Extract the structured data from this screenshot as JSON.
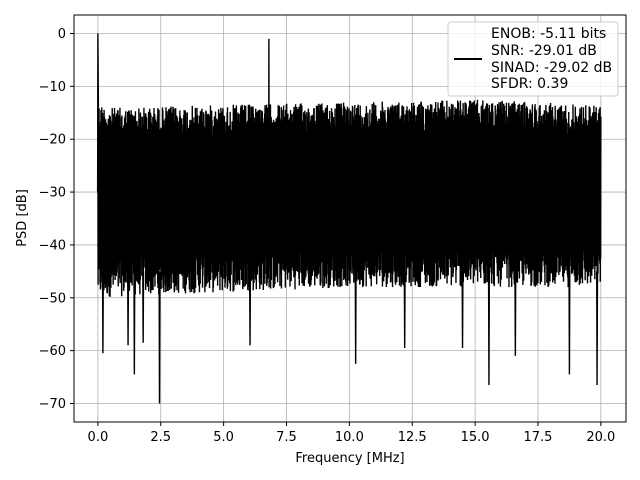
{
  "chart_data": {
    "type": "line",
    "title": "",
    "xlabel": "Frequency [MHz]",
    "ylabel": "PSD [dB]",
    "xlim": [
      -0.95,
      21.0
    ],
    "ylim": [
      -73.5,
      3.5
    ],
    "xticks": [
      0.0,
      2.5,
      5.0,
      7.5,
      10.0,
      12.5,
      15.0,
      17.5,
      20.0
    ],
    "xtick_labels": [
      "0.0",
      "2.5",
      "5.0",
      "7.5",
      "10.0",
      "12.5",
      "15.0",
      "17.5",
      "20.0"
    ],
    "yticks": [
      0,
      -10,
      -20,
      -30,
      -40,
      -50,
      -60,
      -70
    ],
    "ytick_labels": [
      "0",
      "−10",
      "−20",
      "−30",
      "−40",
      "−50",
      "−60",
      "−70"
    ],
    "grid": true,
    "legend_position": "top-right",
    "series": [
      {
        "color": "#000000",
        "noise_band_top": {
          "x": [
            0.0,
            0.5,
            1.0,
            5.0,
            10.0,
            15.0,
            20.0
          ],
          "y": [
            -13,
            -14,
            -14,
            -13.5,
            -13,
            -12.5,
            -13.5
          ]
        },
        "noise_band_bottom": {
          "x": [
            0.0,
            2.0,
            5.0,
            10.0,
            15.0,
            20.0
          ],
          "y": [
            -47,
            -46.5,
            -46,
            -45,
            -45,
            -45
          ]
        },
        "peaks": [
          {
            "x": 0.0,
            "y": 0.0
          },
          {
            "x": 6.8,
            "y": -1.0
          }
        ],
        "deep_dips": [
          {
            "x": 0.2,
            "y": -60.5
          },
          {
            "x": 1.2,
            "y": -59
          },
          {
            "x": 1.45,
            "y": -64.5
          },
          {
            "x": 1.8,
            "y": -58.5
          },
          {
            "x": 2.45,
            "y": -70.0
          },
          {
            "x": 6.05,
            "y": -59
          },
          {
            "x": 10.25,
            "y": -62.5
          },
          {
            "x": 12.2,
            "y": -59.5
          },
          {
            "x": 14.5,
            "y": -59.5
          },
          {
            "x": 15.55,
            "y": -66.5
          },
          {
            "x": 16.6,
            "y": -61
          },
          {
            "x": 18.75,
            "y": -64.5
          },
          {
            "x": 19.85,
            "y": -66.5
          }
        ]
      }
    ],
    "legend": {
      "line_color": "#000000",
      "entries": [
        "ENOB: -5.11 bits",
        "SNR: -29.01 dB",
        "SINAD: -29.02 dB",
        "SFDR: 0.39"
      ]
    }
  }
}
